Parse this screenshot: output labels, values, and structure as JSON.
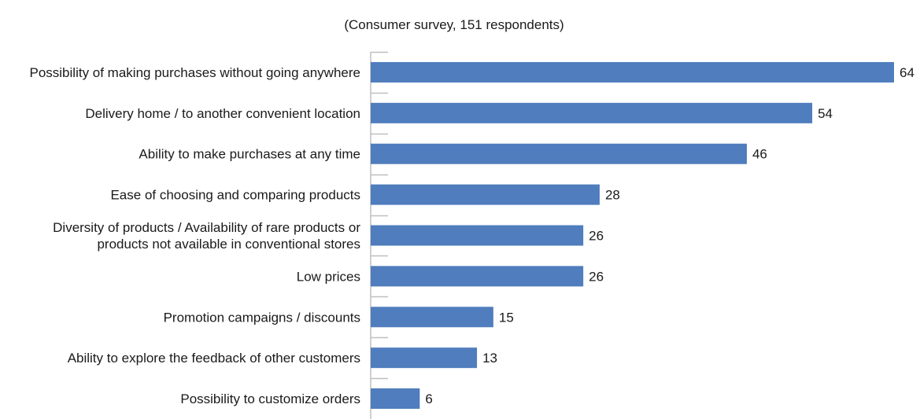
{
  "chart_data": {
    "type": "bar",
    "orientation": "horizontal",
    "title": "",
    "subtitle": "(Consumer survey, 151 respondents)",
    "xlabel": "",
    "ylabel": "",
    "xlim": [
      0,
      64
    ],
    "grid": false,
    "legend": "none",
    "bar_color": "#4F7DBD",
    "axis_color": "#BFBFBF",
    "categories": [
      [
        "Possibility of making purchases without going anywhere"
      ],
      [
        "Delivery home / to another convenient location"
      ],
      [
        "Ability to make purchases at any time"
      ],
      [
        "Ease of choosing and comparing products"
      ],
      [
        "Diversity of products / Availability of rare products or",
        "products not available in conventional stores"
      ],
      [
        "Low prices"
      ],
      [
        "Promotion campaigns / discounts"
      ],
      [
        "Ability to explore the feedback of other customers"
      ],
      [
        "Possibility to customize orders"
      ]
    ],
    "values": [
      64,
      54,
      46,
      28,
      26,
      26,
      15,
      13,
      6
    ]
  }
}
